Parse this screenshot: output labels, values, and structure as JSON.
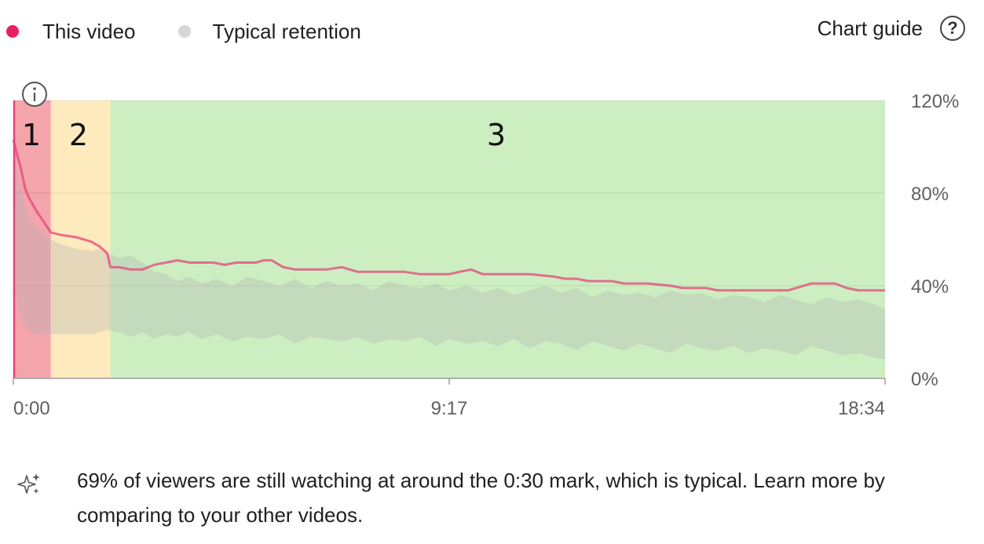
{
  "legend": {
    "items": [
      {
        "label": "This video",
        "color": "#e91e63"
      },
      {
        "label": "Typical retention",
        "color": "#d6d6d6"
      }
    ]
  },
  "header": {
    "chart_guide_label": "Chart guide",
    "help_icon": "question-circle-icon"
  },
  "chart_data": {
    "type": "area",
    "x_unit": "mm:ss",
    "x_ticks": [
      "0:00",
      "9:17",
      "18:34"
    ],
    "y_ticks": [
      "0%",
      "40%",
      "80%",
      "120%"
    ],
    "ylim": [
      0,
      120
    ],
    "xlim": [
      "0:00",
      "18:34"
    ],
    "grid": true,
    "legend_position": "top-left",
    "info_icon": "info-circle-icon",
    "zones": [
      {
        "label": "1",
        "start": "0:00",
        "end": "0:48",
        "color": "#f4a4ab"
      },
      {
        "label": "2",
        "start": "0:48",
        "end": "2:04",
        "color": "#fdeabd"
      },
      {
        "label": "3",
        "start": "2:04",
        "end": "18:34",
        "color": "#cdeec0"
      }
    ],
    "series": [
      {
        "name": "This video",
        "color": "#e0457b",
        "x": [
          "0:00",
          "0:10",
          "0:15",
          "0:20",
          "0:30",
          "0:40",
          "0:48",
          "1:00",
          "1:20",
          "1:40",
          "1:50",
          "2:00",
          "2:04",
          "2:15",
          "2:30",
          "2:45",
          "3:00",
          "3:15",
          "3:30",
          "3:45",
          "4:00",
          "4:15",
          "4:30",
          "4:45",
          "5:00",
          "5:10",
          "5:20",
          "5:30",
          "5:45",
          "6:00",
          "6:20",
          "6:40",
          "7:00",
          "7:20",
          "7:40",
          "8:00",
          "8:20",
          "8:40",
          "9:00",
          "9:17",
          "9:30",
          "9:45",
          "10:00",
          "10:30",
          "11:00",
          "11:30",
          "11:45",
          "12:00",
          "12:15",
          "12:30",
          "12:45",
          "13:00",
          "13:30",
          "14:00",
          "14:15",
          "14:30",
          "14:45",
          "15:00",
          "15:15",
          "15:30",
          "15:45",
          "16:00",
          "16:30",
          "17:00",
          "17:30",
          "17:45",
          "18:00",
          "18:15",
          "18:34"
        ],
        "values": [
          103,
          90,
          82,
          78,
          72,
          67,
          63,
          62,
          61,
          59,
          57,
          54,
          48,
          48,
          47,
          47,
          49,
          50,
          51,
          50,
          50,
          50,
          49,
          50,
          50,
          50,
          51,
          51,
          48,
          47,
          47,
          47,
          48,
          46,
          46,
          46,
          46,
          45,
          45,
          45,
          46,
          47,
          45,
          45,
          45,
          44,
          43,
          43,
          42,
          42,
          42,
          41,
          41,
          40,
          39,
          39,
          39,
          38,
          38,
          38,
          38,
          38,
          38,
          41,
          41,
          39,
          38,
          38,
          38
        ]
      }
    ],
    "typical_range": {
      "name": "Typical retention",
      "color": "#b5b5b5",
      "x": [
        "0:00",
        "0:10",
        "0:20",
        "0:30",
        "0:40",
        "0:48",
        "1:00",
        "1:20",
        "1:40",
        "1:50",
        "2:00",
        "2:15",
        "2:30",
        "2:45",
        "3:00",
        "3:15",
        "3:30",
        "3:45",
        "4:00",
        "4:20",
        "4:40",
        "5:00",
        "5:20",
        "5:40",
        "6:00",
        "6:20",
        "6:40",
        "7:00",
        "7:20",
        "7:40",
        "8:00",
        "8:20",
        "8:40",
        "9:00",
        "9:17",
        "9:40",
        "10:00",
        "10:20",
        "10:40",
        "11:00",
        "11:20",
        "11:40",
        "12:00",
        "12:20",
        "12:40",
        "13:00",
        "13:20",
        "13:40",
        "14:00",
        "14:20",
        "14:40",
        "15:00",
        "15:20",
        "15:40",
        "16:00",
        "16:20",
        "16:40",
        "17:00",
        "17:20",
        "17:40",
        "18:00",
        "18:20",
        "18:34"
      ],
      "upper": [
        98,
        80,
        70,
        65,
        62,
        60,
        58,
        56,
        55,
        56,
        54,
        52,
        53,
        50,
        46,
        45,
        42,
        44,
        41,
        43,
        40,
        44,
        42,
        40,
        43,
        39,
        42,
        40,
        41,
        38,
        42,
        40,
        39,
        41,
        38,
        40,
        37,
        39,
        36,
        38,
        40,
        37,
        39,
        35,
        38,
        36,
        37,
        35,
        38,
        36,
        37,
        34,
        36,
        35,
        33,
        36,
        34,
        32,
        35,
        33,
        34,
        32,
        30
      ],
      "lower": [
        40,
        25,
        20,
        19,
        19,
        19,
        19,
        19,
        19,
        20,
        21,
        20,
        18,
        20,
        17,
        19,
        18,
        20,
        17,
        19,
        16,
        18,
        17,
        19,
        15,
        18,
        17,
        16,
        18,
        15,
        17,
        16,
        18,
        14,
        17,
        15,
        16,
        14,
        17,
        13,
        16,
        15,
        12,
        16,
        14,
        12,
        15,
        13,
        11,
        15,
        13,
        12,
        14,
        11,
        13,
        12,
        10,
        14,
        12,
        10,
        11,
        9,
        8
      ]
    }
  },
  "insight": {
    "icon": "sparkle-icon",
    "text": "69% of viewers are still watching at around the 0:30 mark, which is typical. Learn more by comparing to your other videos."
  }
}
